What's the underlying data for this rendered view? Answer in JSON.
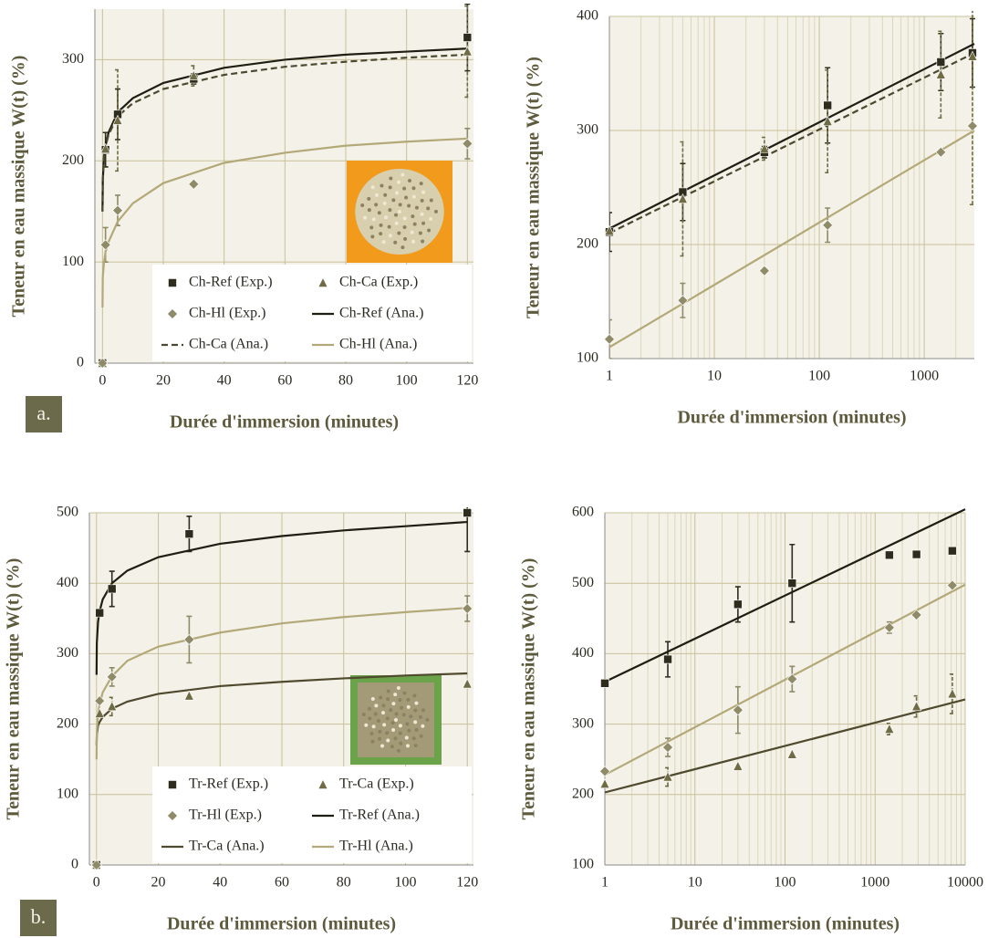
{
  "chart_data": [
    {
      "type": "scatter",
      "panel_label": "a.",
      "x_label": "Durée d'immersion (minutes)",
      "y_label": "Teneur en eau massique W(t) (%)",
      "xlim": [
        -2.5,
        122
      ],
      "ylim": [
        0,
        350
      ],
      "xticks": [
        0,
        20,
        40,
        60,
        80,
        100,
        120
      ],
      "yticks": [
        0,
        100,
        200,
        300
      ],
      "grid": true,
      "legend": "lower right",
      "series": [
        {
          "name": "Ch-Ref (Exp.)",
          "mode": "markers",
          "marker": "square",
          "color": "#2e2c1c",
          "x": [
            0,
            1,
            5,
            30,
            120
          ],
          "values": [
            0,
            211,
            246,
            281,
            322
          ],
          "errors": [
            null,
            17,
            25,
            5,
            33
          ]
        },
        {
          "name": "Ch-Ca (Exp.)",
          "mode": "markers",
          "marker": "triangle",
          "color": "#6f6b45",
          "x": [
            0,
            1,
            5,
            30,
            120
          ],
          "values": [
            0,
            212,
            240,
            284,
            308
          ],
          "errors": [
            null,
            null,
            50,
            10,
            45
          ]
        },
        {
          "name": "Ch-Hl (Exp.)",
          "mode": "markers",
          "marker": "diamond",
          "color": "#8f8a68",
          "x": [
            0,
            1,
            5,
            30,
            120
          ],
          "values": [
            0,
            117,
            151,
            177,
            217
          ],
          "errors": [
            null,
            17,
            15,
            null,
            15
          ]
        },
        {
          "name": "Ch-Ref (Ana.)",
          "mode": "line",
          "color": "#1f1e12",
          "x": [
            0.01,
            0.1,
            0.5,
            1,
            2,
            5,
            10,
            20,
            40,
            60,
            80,
            100,
            120
          ],
          "values": [
            150,
            180,
            205,
            215,
            228,
            248,
            262,
            277,
            292,
            300,
            305,
            308,
            311
          ]
        },
        {
          "name": "Ch-Ca (Ana.)",
          "mode": "line",
          "dash": true,
          "color": "#4b4930",
          "x": [
            0.01,
            0.1,
            0.5,
            1,
            2,
            5,
            10,
            20,
            40,
            60,
            80,
            100,
            120
          ],
          "values": [
            150,
            180,
            205,
            214,
            226,
            244,
            257,
            271,
            285,
            293,
            298,
            302,
            305
          ]
        },
        {
          "name": "Ch-Hl (Ana.)",
          "mode": "line",
          "color": "#b3a878",
          "x": [
            0.01,
            0.1,
            0.5,
            1,
            2,
            5,
            10,
            20,
            40,
            60,
            80,
            100,
            120
          ],
          "values": [
            55,
            85,
            100,
            110,
            120,
            140,
            158,
            178,
            198,
            208,
            215,
            219,
            222
          ]
        }
      ]
    },
    {
      "type": "scatter",
      "xscale": "log",
      "x_label": "Durée d'immersion (minutes)",
      "y_label": "Teneur en eau massique W(t) (%)",
      "xlim": [
        1,
        3000
      ],
      "ylim": [
        100,
        400
      ],
      "xticks": [
        1,
        10,
        100,
        1000
      ],
      "yticks": [
        100,
        200,
        300,
        400
      ],
      "grid": true,
      "series": [
        {
          "mode": "markers",
          "marker": "square",
          "color": "#2e2c1c",
          "x": [
            1,
            5,
            30,
            120,
            1440,
            2880
          ],
          "values": [
            211,
            246,
            281,
            322,
            360,
            368
          ],
          "errors": [
            17,
            25,
            5,
            33,
            25,
            30
          ]
        },
        {
          "mode": "markers",
          "marker": "triangle",
          "color": "#6f6b45",
          "x": [
            1,
            5,
            30,
            120,
            1440,
            2880
          ],
          "values": [
            212,
            240,
            284,
            308,
            349,
            365
          ],
          "errors": [
            null,
            50,
            10,
            45,
            38,
            130
          ]
        },
        {
          "mode": "markers",
          "marker": "diamond",
          "color": "#8f8a68",
          "x": [
            1,
            5,
            30,
            120,
            1440,
            2880
          ],
          "values": [
            117,
            151,
            177,
            217,
            281,
            304
          ],
          "errors": [
            17,
            15,
            null,
            15,
            null,
            null
          ]
        },
        {
          "mode": "line",
          "color": "#1f1e12",
          "x": [
            1,
            3000
          ],
          "values": [
            214,
            376
          ]
        },
        {
          "mode": "line",
          "dash": true,
          "color": "#4b4930",
          "x": [
            1,
            3000
          ],
          "values": [
            210,
            368
          ]
        },
        {
          "mode": "line",
          "color": "#b3a878",
          "x": [
            1,
            3000
          ],
          "values": [
            110,
            300
          ]
        }
      ]
    },
    {
      "type": "scatter",
      "panel_label": "b.",
      "x_label": "Durée d'immersion (minutes)",
      "y_label": "Teneur en eau massique W(t) (%)",
      "xlim": [
        -2.3,
        122
      ],
      "ylim": [
        0,
        500
      ],
      "xticks": [
        0,
        20,
        40,
        60,
        80,
        100,
        120
      ],
      "yticks": [
        0,
        100,
        200,
        300,
        400,
        500
      ],
      "grid": true,
      "legend": "lower right",
      "series": [
        {
          "name": "Tr-Ref (Exp.)",
          "mode": "markers",
          "marker": "square",
          "color": "#2e2c1c",
          "x": [
            0,
            1,
            5,
            30,
            120
          ],
          "values": [
            0,
            358,
            392,
            470,
            500
          ],
          "errors": [
            null,
            5,
            25,
            25,
            55
          ]
        },
        {
          "name": "Tr-Ca (Exp.)",
          "mode": "markers",
          "marker": "triangle",
          "color": "#6f6b45",
          "x": [
            0,
            1,
            5,
            30,
            120
          ],
          "values": [
            0,
            215,
            225,
            240,
            257
          ],
          "errors": [
            null,
            null,
            13,
            null,
            null
          ]
        },
        {
          "name": "Tr-Hl (Exp.)",
          "mode": "markers",
          "marker": "diamond",
          "color": "#8f8a68",
          "x": [
            0,
            1,
            5,
            30,
            120
          ],
          "values": [
            0,
            233,
            267,
            320,
            364
          ],
          "errors": [
            null,
            null,
            13,
            33,
            18
          ]
        },
        {
          "name": "Tr-Ref (Ana.)",
          "mode": "line",
          "color": "#1f1e12",
          "x": [
            0.01,
            0.1,
            0.5,
            1,
            2,
            5,
            10,
            20,
            40,
            60,
            80,
            100,
            120
          ],
          "values": [
            270,
            315,
            345,
            360,
            377,
            400,
            418,
            437,
            456,
            467,
            475,
            481,
            487
          ]
        },
        {
          "name": "Tr-Ca (Ana.)",
          "mode": "line",
          "color": "#4f4a2e",
          "x": [
            0.01,
            0.1,
            0.5,
            1,
            2,
            5,
            10,
            20,
            40,
            60,
            80,
            100,
            120
          ],
          "values": [
            170,
            185,
            198,
            203,
            210,
            222,
            232,
            243,
            254,
            260,
            265,
            269,
            272
          ]
        },
        {
          "name": "Tr-Hl (Ana.)",
          "mode": "line",
          "color": "#b3a878",
          "x": [
            0.01,
            0.1,
            0.5,
            1,
            2,
            5,
            10,
            20,
            40,
            60,
            80,
            100,
            120
          ],
          "values": [
            150,
            190,
            215,
            228,
            245,
            268,
            290,
            310,
            330,
            343,
            352,
            359,
            365
          ]
        }
      ]
    },
    {
      "type": "scatter",
      "xscale": "log",
      "x_label": "Durée d'immersion (minutes)",
      "y_label": "Teneur en eau massique W(t) (%)",
      "xlim": [
        1,
        10000
      ],
      "ylim": [
        100,
        600
      ],
      "xticks": [
        1,
        10,
        100,
        1000,
        10000
      ],
      "yticks": [
        100,
        200,
        300,
        400,
        500,
        600
      ],
      "grid": true,
      "series": [
        {
          "mode": "markers",
          "marker": "square",
          "color": "#2e2c1c",
          "x": [
            1,
            5,
            30,
            120,
            1440,
            2880,
            7200
          ],
          "values": [
            358,
            392,
            470,
            500,
            540,
            541,
            546
          ],
          "errors": [
            5,
            25,
            25,
            55,
            null,
            null,
            null
          ]
        },
        {
          "mode": "markers",
          "marker": "triangle",
          "color": "#6f6b45",
          "x": [
            1,
            5,
            30,
            120,
            1440,
            2880,
            7200
          ],
          "values": [
            215,
            225,
            240,
            257,
            293,
            325,
            343
          ],
          "errors": [
            null,
            13,
            null,
            null,
            8,
            15,
            28
          ]
        },
        {
          "mode": "markers",
          "marker": "diamond",
          "color": "#8f8a68",
          "x": [
            1,
            5,
            30,
            120,
            1440,
            2880,
            7200
          ],
          "values": [
            233,
            267,
            320,
            364,
            437,
            455,
            497
          ],
          "errors": [
            null,
            13,
            33,
            18,
            8,
            null,
            null
          ]
        },
        {
          "mode": "line",
          "color": "#1f1e12",
          "x": [
            1,
            10000
          ],
          "values": [
            360,
            605
          ]
        },
        {
          "mode": "line",
          "color": "#4f4a2e",
          "x": [
            1,
            10000
          ],
          "values": [
            203,
            335
          ]
        },
        {
          "mode": "line",
          "color": "#b3a878",
          "x": [
            1,
            10000
          ],
          "values": [
            228,
            498
          ]
        }
      ]
    }
  ]
}
